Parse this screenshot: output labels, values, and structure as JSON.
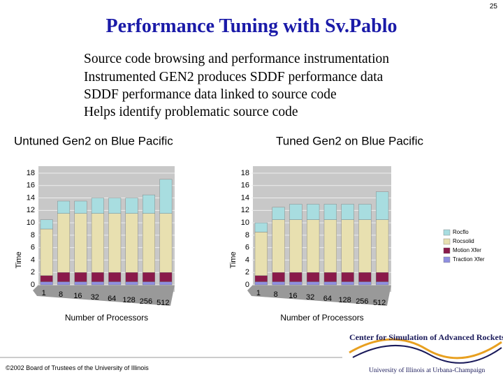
{
  "page_number": "25",
  "slide": {
    "title": "Performance Tuning with Sv.Pablo",
    "bullets": [
      "Source code browsing and performance instrumentation",
      "Instrumented GEN2 produces SDDF performance data",
      "SDDF performance data linked to source code",
      "Helps identify problematic source code"
    ]
  },
  "chart_data": [
    {
      "type": "bar",
      "stacked": true,
      "title": "Untuned Gen2 on Blue Pacific",
      "x_label": "Number of Processors",
      "y_label": "Time",
      "categories": [
        "1",
        "8",
        "16",
        "32",
        "64",
        "128",
        "256",
        "512"
      ],
      "series": [
        {
          "name": "Traction Xfer",
          "color": "#8f8fe0",
          "values": [
            0.5,
            0.5,
            0.5,
            0.5,
            0.5,
            0.5,
            0.5,
            0.5
          ]
        },
        {
          "name": "Motion Xfer",
          "color": "#8a1a4a",
          "values": [
            1,
            1.5,
            1.5,
            1.5,
            1.5,
            1.5,
            1.5,
            1.5
          ]
        },
        {
          "name": "Rocsolid",
          "color": "#e8e0b0",
          "values": [
            7.5,
            9.5,
            9.5,
            9.5,
            9.5,
            9.5,
            9.5,
            9.5
          ]
        },
        {
          "name": "Rocflo",
          "color": "#a8dde0",
          "values": [
            1.5,
            2,
            2,
            2.5,
            2.5,
            2.5,
            3,
            5.5
          ]
        }
      ],
      "ylim": [
        0,
        18
      ],
      "yticks": [
        0,
        2,
        4,
        6,
        8,
        10,
        12,
        14,
        16,
        18
      ],
      "grid": true,
      "legend": false
    },
    {
      "type": "bar",
      "stacked": true,
      "title": "Tuned Gen2 on Blue Pacific",
      "x_label": "Number of Processors",
      "y_label": "Time",
      "categories": [
        "1",
        "8",
        "16",
        "32",
        "64",
        "128",
        "256",
        "512"
      ],
      "series": [
        {
          "name": "Traction Xfer",
          "color": "#8f8fe0",
          "values": [
            0.5,
            0.5,
            0.5,
            0.5,
            0.5,
            0.5,
            0.5,
            0.5
          ]
        },
        {
          "name": "Motion Xfer",
          "color": "#8a1a4a",
          "values": [
            1,
            1.5,
            1.5,
            1.5,
            1.5,
            1.5,
            1.5,
            1.5
          ]
        },
        {
          "name": "Rocsolid",
          "color": "#e8e0b0",
          "values": [
            7,
            8.5,
            8.5,
            8.5,
            8.5,
            8.5,
            8.5,
            8.5
          ]
        },
        {
          "name": "Rocflo",
          "color": "#a8dde0",
          "values": [
            1.5,
            2,
            2.5,
            2.5,
            2.5,
            2.5,
            2.5,
            4.5
          ]
        }
      ],
      "ylim": [
        0,
        18
      ],
      "yticks": [
        0,
        2,
        4,
        6,
        8,
        10,
        12,
        14,
        16,
        18
      ],
      "grid": true,
      "legend": true,
      "legend_position": "right"
    }
  ],
  "footer": "©2002 Board of Trustees of the University of Illinois",
  "logo": {
    "name": "Center for Simulation of Advanced Rockets",
    "university": "University of Illinois at Urbana-Champaign"
  }
}
